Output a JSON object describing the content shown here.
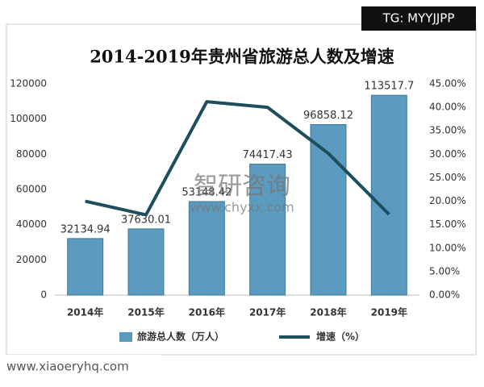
{
  "chart_data": {
    "type": "bar-line",
    "title": "2014-2019年贵州省旅游总人数及增速",
    "categories": [
      "2014年",
      "2015年",
      "2016年",
      "2017年",
      "2018年",
      "2019年"
    ],
    "series": [
      {
        "name": "旅游总人数（万人）",
        "type": "bar",
        "color": "#5b9bc0",
        "axis": "y",
        "values": [
          32134.94,
          37630.01,
          53148.42,
          74417.43,
          96858.12,
          113517.7
        ]
      },
      {
        "name": "增速（%）",
        "type": "line",
        "color": "#1c4e5e",
        "axis": "y2",
        "values": [
          20,
          17.1,
          41.2,
          40,
          30.2,
          17.2
        ]
      }
    ],
    "ylim": [
      0,
      120000
    ],
    "yticks": [
      0,
      20000,
      40000,
      60000,
      80000,
      100000,
      120000
    ],
    "y2lim": [
      0,
      45
    ],
    "y2ticks": [
      {
        "value": 0,
        "label": "0.00%"
      },
      {
        "value": 5,
        "label": "5.00%"
      },
      {
        "value": 10,
        "label": "10.00%"
      },
      {
        "value": 15,
        "label": "15.00%"
      },
      {
        "value": 20,
        "label": "20.00%"
      },
      {
        "value": 25,
        "label": "25.00%"
      },
      {
        "value": 30,
        "label": "30.00%"
      },
      {
        "value": 35,
        "label": "35.00%"
      },
      {
        "value": 40,
        "label": "40.00%"
      },
      {
        "value": 45,
        "label": "45.00%"
      }
    ],
    "grid": false,
    "legend": "bottom"
  },
  "watermarks": [
    "TG: MYYJJPP",
    "智研咨询",
    "www.chyxx.com",
    "www.xiaoeryhq.com"
  ]
}
